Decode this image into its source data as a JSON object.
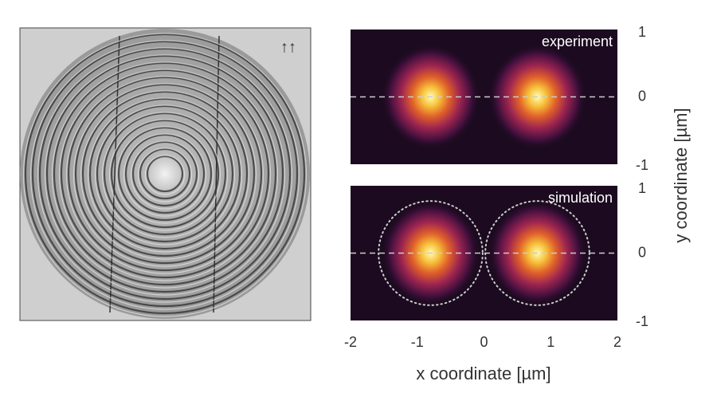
{
  "image": {
    "label": "↑↑"
  },
  "figure": {
    "xlabel": "x coordinate [µm]",
    "ylabel": "y coordinate [µm]"
  },
  "chart_data": [
    {
      "type": "heatmap",
      "label": "experiment",
      "xlim": [
        -2,
        2
      ],
      "ylim": [
        -1,
        1
      ],
      "yticks": [
        1,
        0,
        -1
      ],
      "hline": 0,
      "spots": {
        "x": [
          -0.8,
          0.8
        ],
        "y": [
          0,
          0
        ]
      }
    },
    {
      "type": "heatmap",
      "label": "simulation",
      "xlim": [
        -2,
        2
      ],
      "ylim": [
        -1,
        1
      ],
      "yticks": [
        1,
        0,
        -1
      ],
      "xticks": [
        -2,
        -1,
        0,
        1,
        2
      ],
      "hline": 0,
      "spots": {
        "x": [
          -0.8,
          0.8
        ],
        "y": [
          0,
          0
        ]
      },
      "circles": {
        "x": [
          -0.8,
          0.8
        ],
        "y": [
          0,
          0
        ],
        "r": 0.78
      }
    }
  ]
}
